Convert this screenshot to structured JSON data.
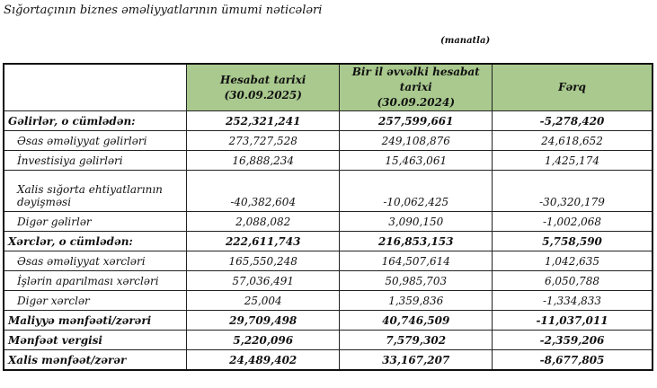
{
  "title": "Sığortaçının biznes əməliyyatlarının ümumi nəticələri",
  "unit": "(manatla)",
  "headers": {
    "col1_line1": "Hesabat tarixi",
    "col1_line2": "(30.09.2025)",
    "col2_line1": "Bir il əvvəlki hesabat tarixi",
    "col2_line2": "(30.09.2024)",
    "col3": "Fərq"
  },
  "header_color": "#a9c98e",
  "rows": [
    {
      "label": "Gəlirlər, o cümlədən:",
      "current": "252,321,241",
      "previous": "257,599,661",
      "diff": "-5,278,420"
    },
    {
      "label": "Əsas əməliyyat gəlirləri",
      "current": "273,727,528",
      "previous": "249,108,876",
      "diff": "24,618,652"
    },
    {
      "label": "İnvestisiya gəlirləri",
      "current": "16,888,234",
      "previous": "15,463,061",
      "diff": "1,425,174"
    },
    {
      "label": "Xalis sığorta ehtiyatlarının dəyişməsi",
      "current": "-40,382,604",
      "previous": "-10,062,425",
      "diff": "-30,320,179"
    },
    {
      "label": "Digər gəlirlər",
      "current": "2,088,082",
      "previous": "3,090,150",
      "diff": "-1,002,068"
    },
    {
      "label": "Xərclər, o cümlədən:",
      "current": "222,611,743",
      "previous": "216,853,153",
      "diff": "5,758,590"
    },
    {
      "label": "Əsas əməliyyat xərcləri",
      "current": "165,550,248",
      "previous": "164,507,614",
      "diff": "1,042,635"
    },
    {
      "label": "İşlərin aparılması xərcləri",
      "current": "57,036,491",
      "previous": "50,985,703",
      "diff": "6,050,788"
    },
    {
      "label": "Digər xərclər",
      "current": "25,004",
      "previous": "1,359,836",
      "diff": "-1,334,833"
    },
    {
      "label": "Maliyyə mənfəəti/zərəri",
      "current": "29,709,498",
      "previous": "40,746,509",
      "diff": "-11,037,011"
    },
    {
      "label": "Mənfəət vergisi",
      "current": "5,220,096",
      "previous": "7,579,302",
      "diff": "-2,359,206"
    },
    {
      "label": "Xalis mənfəət/zərər",
      "current": "24,489,402",
      "previous": "33,167,207",
      "diff": "-8,677,805"
    }
  ]
}
